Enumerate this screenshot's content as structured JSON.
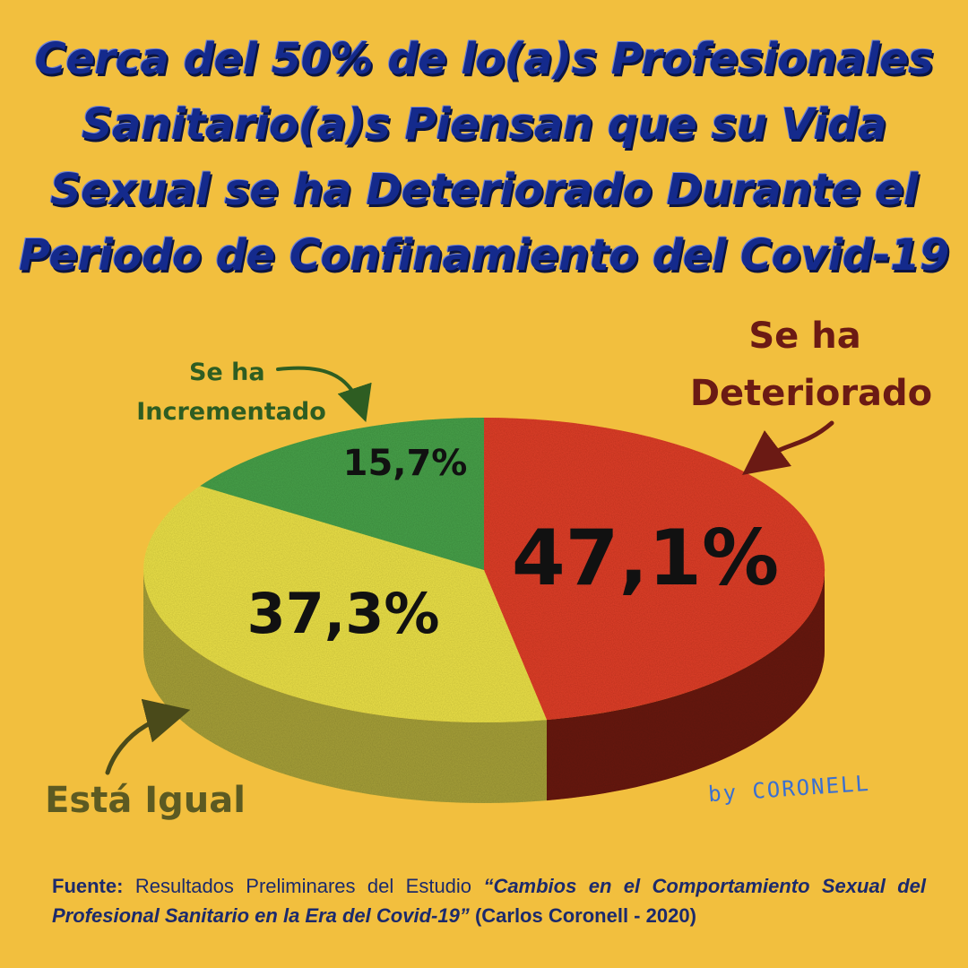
{
  "title_lines": [
    "Cerca del 50% de lo(a)s Profesionales",
    "Sanitario(a)s Piensan que su Vida",
    "Sexual se ha Deteriorado Durante el",
    "Periodo de Confinamiento del Covid-19"
  ],
  "chart_data": {
    "type": "pie",
    "title": "Cerca del 50% de lo(a)s Profesionales Sanitario(a)s Piensan que su Vida Sexual se ha Deteriorado Durante el Periodo de Confinamiento del Covid-19",
    "slices": [
      {
        "key": "deteriorado",
        "label_lines": [
          "Se ha",
          "Deteriorado"
        ],
        "value": 47.1,
        "value_label": "47,1%",
        "color": "#e1412b",
        "side_color": "#6b1a14",
        "label_color": "#6b1a14"
      },
      {
        "key": "igual",
        "label_lines": [
          "Está Igual"
        ],
        "value": 37.3,
        "value_label": "37,3%",
        "color": "#eee34a",
        "side_color": "#a8a23a",
        "label_color": "#5c5a22"
      },
      {
        "key": "incrementado",
        "label_lines": [
          "Se ha",
          "Incrementado"
        ],
        "value": 15.7,
        "value_label": "15,7%",
        "color": "#4aa34c",
        "side_color": "#2f6d31",
        "label_color": "#2e5d22"
      }
    ],
    "legend": "none",
    "start": "top, clockwise",
    "view": "3d-tilted"
  },
  "signature": "by CORONELL",
  "footer": {
    "source_label": "Fuente:",
    "source_text": "Resultados Preliminares del Estudio",
    "study_title": "“Cambios en el Comportamiento Sexual del Profesional Sanitario en la Era del Covid-19”",
    "author_year": "(Carlos Coronell - 2020)"
  },
  "colors": {
    "background": "#f2bf3e",
    "title": "#142a8c",
    "footer": "#1c2a6c",
    "signature": "#3a6fd1"
  }
}
